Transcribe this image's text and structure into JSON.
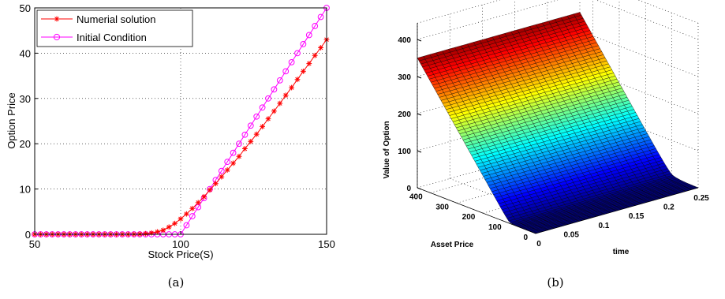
{
  "figure": {
    "panel_a_caption": "(a)",
    "panel_b_caption": "(b)"
  },
  "chart_data": [
    {
      "type": "line",
      "panel": "a",
      "xlabel": "Stock Price(S)",
      "ylabel": "Option Price",
      "xlim": [
        50,
        150
      ],
      "ylim": [
        0,
        50
      ],
      "xticks": [
        50,
        100,
        150
      ],
      "yticks": [
        0,
        10,
        20,
        30,
        40,
        50
      ],
      "grid": true,
      "legend_position": "top-left",
      "series": [
        {
          "name": "Numerial solution",
          "color": "#ff0000",
          "marker": "star",
          "x": [
            50,
            52,
            54,
            56,
            58,
            60,
            62,
            64,
            66,
            68,
            70,
            72,
            74,
            76,
            78,
            80,
            82,
            84,
            86,
            88,
            90,
            92,
            94,
            96,
            98,
            100,
            102,
            104,
            106,
            108,
            110,
            112,
            114,
            116,
            118,
            120,
            122,
            124,
            126,
            128,
            130,
            132,
            134,
            136,
            138,
            140,
            142,
            144,
            146,
            148,
            150
          ],
          "y": [
            0,
            0,
            0,
            0,
            0,
            0,
            0,
            0,
            0,
            0,
            0,
            0,
            0,
            0,
            0,
            0,
            0,
            0.02,
            0.05,
            0.15,
            0.3,
            0.55,
            0.9,
            1.6,
            2.4,
            3.4,
            4.5,
            5.7,
            7.0,
            8.3,
            9.8,
            11.2,
            12.7,
            14.2,
            15.7,
            17.2,
            18.9,
            20.5,
            22.1,
            23.8,
            25.5,
            27.2,
            28.9,
            30.7,
            32.4,
            34.2,
            36.0,
            37.7,
            39.5,
            41.2,
            43.0
          ]
        },
        {
          "name": "Initial Condition",
          "color": "#ff00ff",
          "marker": "circle",
          "x": [
            50,
            52,
            54,
            56,
            58,
            60,
            62,
            64,
            66,
            68,
            70,
            72,
            74,
            76,
            78,
            80,
            82,
            84,
            86,
            88,
            90,
            92,
            94,
            96,
            98,
            100,
            102,
            104,
            106,
            108,
            110,
            112,
            114,
            116,
            118,
            120,
            122,
            124,
            126,
            128,
            130,
            132,
            134,
            136,
            138,
            140,
            142,
            144,
            146,
            148,
            150
          ],
          "y": [
            0,
            0,
            0,
            0,
            0,
            0,
            0,
            0,
            0,
            0,
            0,
            0,
            0,
            0,
            0,
            0,
            0,
            0,
            0,
            0,
            0,
            0,
            0,
            0,
            0,
            0,
            2,
            4,
            6,
            8,
            10,
            12,
            14,
            16,
            18,
            20,
            22,
            24,
            26,
            28,
            30,
            32,
            34,
            36,
            38,
            40,
            42,
            44,
            46,
            48,
            50
          ]
        }
      ]
    },
    {
      "type": "surface",
      "panel": "b",
      "xlabel": "time",
      "ylabel": "Asset Price",
      "zlabel": "Value of Option",
      "x_ticks": [
        "0",
        "0.05",
        "0.1",
        "0.15",
        "0.2",
        "0.25"
      ],
      "y_ticks": [
        "0",
        "100",
        "200",
        "300",
        "400"
      ],
      "z_ticks": [
        "0",
        "100",
        "200",
        "300",
        "400"
      ],
      "xlim": [
        0,
        0.25
      ],
      "ylim": [
        0,
        450
      ],
      "zlim": [
        0,
        400
      ],
      "strike": 100,
      "colormap": "jet",
      "grid": true
    }
  ]
}
